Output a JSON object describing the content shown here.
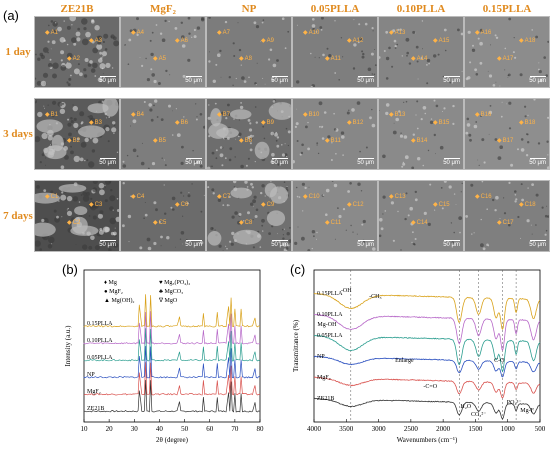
{
  "panel_a": {
    "label": "(a)",
    "columns": [
      "ZE21B",
      "MgF₂",
      "NP",
      "0.05PLLA",
      "0.10PLLA",
      "0.15PLLA"
    ],
    "rows": [
      "1 day",
      "3 days",
      "7 days"
    ],
    "scale_bar": "50 μm",
    "tags": [
      [
        "A1",
        "A2",
        "A3",
        "A4",
        "A5",
        "A6",
        "A7",
        "A8",
        "A9",
        "A10",
        "A11",
        "A12",
        "A13",
        "A14",
        "A15",
        "A16",
        "A17",
        "A18"
      ],
      [
        "B1",
        "B2",
        "B3",
        "B4",
        "B5",
        "B6",
        "B7",
        "B8",
        "B9",
        "B10",
        "B11",
        "B12",
        "B13",
        "B14",
        "B15",
        "B16",
        "B17",
        "B18"
      ],
      [
        "C1",
        "C2",
        "C3",
        "C4",
        "C5",
        "C6",
        "C7",
        "C8",
        "C9",
        "C10",
        "C11",
        "C12",
        "C13",
        "C14",
        "C15",
        "C16",
        "C17",
        "C18"
      ]
    ],
    "tile_tones": [
      [
        "#6a6a6a",
        "#8a8a8a",
        "#7c7c7c",
        "#7e7e7e",
        "#858585",
        "#8c8c8c"
      ],
      [
        "#5a5a5a",
        "#7d7d7d",
        "#6d6d6d",
        "#878787",
        "#8a8a8a",
        "#8e8e8e"
      ],
      [
        "#4e4e4e",
        "#6b6b6b",
        "#707070",
        "#8a8a8a",
        "#858585",
        "#7f7f7f"
      ]
    ]
  },
  "panel_b": {
    "label": "(b)",
    "chart_data": {
      "type": "line",
      "xlabel": "2θ (degree)",
      "ylabel": "Intensity (a.u.)",
      "xlim": [
        10,
        80
      ],
      "xticks": [
        10,
        20,
        30,
        40,
        50,
        60,
        70,
        80
      ],
      "series": [
        {
          "name": "ZE21B",
          "color": "#333333"
        },
        {
          "name": "MgF₂",
          "color": "#d9534f"
        },
        {
          "name": "NP",
          "color": "#2a4fbf"
        },
        {
          "name": "0.05PLLA",
          "color": "#2a9d8f"
        },
        {
          "name": "0.10PLLA",
          "color": "#b768c8"
        },
        {
          "name": "0.15PLLA",
          "color": "#d9a21b"
        }
      ],
      "peaks": [
        32.2,
        34.4,
        36.6,
        47.8,
        57.4,
        63.1,
        67.3,
        68.6,
        70.0,
        72.5,
        77.8
      ],
      "legend": [
        "♦ Mg",
        "● MgF₂",
        "▲ Mg(OH)₂",
        "♥ Mg₃(PO₄)₂",
        "♣ MgCO₃",
        "∇ MgO"
      ]
    }
  },
  "panel_c": {
    "label": "(c)",
    "chart_data": {
      "type": "line",
      "xlabel": "Wavenumbers (cm⁻¹)",
      "ylabel": "Transmittance (%)",
      "xlim": [
        4000,
        500
      ],
      "xticks": [
        4000,
        3500,
        3000,
        2500,
        2000,
        1500,
        1000,
        500
      ],
      "series": [
        {
          "name": "ZE21B",
          "color": "#333333"
        },
        {
          "name": "MgF₂",
          "color": "#d9534f"
        },
        {
          "name": "NP",
          "color": "#2a4fbf"
        },
        {
          "name": "0.05PLLA",
          "color": "#2a9d8f"
        },
        {
          "name": "0.10PLLA",
          "color": "#b768c8"
        },
        {
          "name": "0.15PLLA",
          "color": "#d9a21b"
        }
      ],
      "annotations": [
        "-OH",
        "-CH₃",
        "Mg-OH",
        "Enlarge",
        "-C=O",
        "C-O",
        "H₂O",
        "CO₃²⁻",
        "PO₄³⁻",
        "Mg-F"
      ]
    }
  }
}
